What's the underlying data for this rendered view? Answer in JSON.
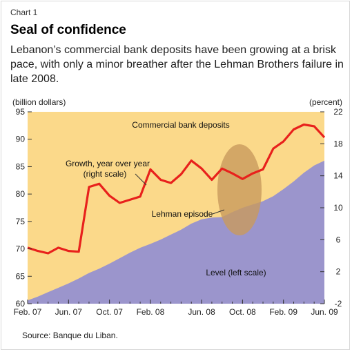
{
  "header": {
    "chart_number": "Chart 1",
    "title": "Seal of confidence",
    "subtitle": "Lebanon’s commercial bank deposits have been growing at a brisk pace, with only a minor breather after the Lehman Brothers failure in late 2008."
  },
  "footer": {
    "source": "Source: Banque du Liban."
  },
  "colors": {
    "background": "#FBD98A",
    "level_area": "#9B95CC",
    "growth_line": "#E8211C",
    "lehman_ellipse": "#C99A5C"
  },
  "chart_data": {
    "type": "area",
    "title": "Commercial bank deposits",
    "ylabel_left": "(billion dollars)",
    "ylabel_right": "(percent)",
    "ylim_left": [
      60,
      95
    ],
    "ylim_right": [
      -2,
      22
    ],
    "yticks_left": [
      60,
      65,
      70,
      75,
      80,
      85,
      90,
      95
    ],
    "yticks_right": [
      -2,
      2,
      6,
      10,
      14,
      18,
      22
    ],
    "xticks": [
      "Feb. 07",
      "Jun. 07",
      "Oct. 07",
      "Feb. 08",
      "Jun. 08",
      "Oct. 08",
      "Feb. 09",
      "Jun. 09"
    ],
    "x": [
      0,
      1,
      2,
      3,
      4,
      5,
      6,
      7,
      8,
      9,
      10,
      11,
      12,
      13,
      14,
      15,
      16,
      17,
      18,
      19,
      20,
      21,
      22,
      23,
      24,
      25,
      26,
      27,
      28,
      29
    ],
    "series": [
      {
        "name": "Level (left scale)",
        "axis": "left",
        "values": [
          60.6,
          61.3,
          62.1,
          62.9,
          63.7,
          64.6,
          65.6,
          66.4,
          67.3,
          68.3,
          69.3,
          70.2,
          70.9,
          71.7,
          72.6,
          73.5,
          74.6,
          75.4,
          75.7,
          75.8,
          76.7,
          77.5,
          78.1,
          78.7,
          79.6,
          80.9,
          82.3,
          83.9,
          85.2,
          86.1
        ]
      },
      {
        "name": "Growth, year over year (right scale)",
        "axis": "right",
        "values": [
          5.0,
          4.6,
          4.3,
          5.0,
          4.6,
          4.5,
          12.6,
          13.0,
          11.5,
          10.6,
          11.0,
          11.4,
          14.8,
          13.5,
          13.1,
          14.2,
          15.9,
          14.9,
          13.5,
          14.9,
          14.3,
          13.6,
          14.3,
          14.8,
          17.4,
          18.3,
          19.8,
          20.4,
          20.2,
          18.8
        ]
      }
    ],
    "annotations": {
      "growth_label_line1": "Growth, year over year",
      "growth_label_line2": "(right scale)",
      "level_label": "Level (left scale)",
      "lehman_label": "Lehman episode"
    },
    "grid": false,
    "legend": "none"
  }
}
